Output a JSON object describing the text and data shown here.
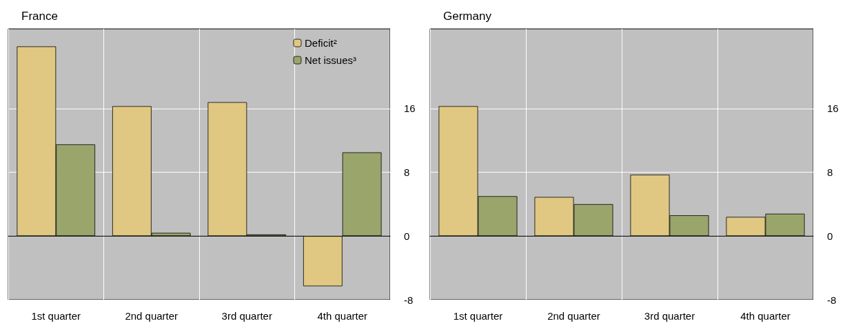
{
  "chart_data": [
    {
      "type": "bar",
      "title": "France",
      "categories": [
        "1st quarter",
        "2nd quarter",
        "3rd quarter",
        "4th quarter"
      ],
      "series": [
        {
          "name": "Deficit²",
          "color": "#e0c882",
          "values": [
            23.8,
            16.3,
            16.8,
            -6.3
          ]
        },
        {
          "name": "Net issues³",
          "color": "#9aa56c",
          "values": [
            11.5,
            0.4,
            0.2,
            10.5
          ]
        }
      ],
      "ylim": [
        -8,
        26
      ],
      "yticks": [
        -8,
        0,
        8,
        16
      ],
      "grid": true,
      "legend": "top right"
    },
    {
      "type": "bar",
      "title": "Germany",
      "categories": [
        "1st quarter",
        "2nd quarter",
        "3rd quarter",
        "4th quarter"
      ],
      "series": [
        {
          "color": "#e0c882",
          "values": [
            16.3,
            4.9,
            7.7,
            2.4
          ]
        },
        {
          "color": "#9aa56c",
          "values": [
            5.0,
            4.0,
            2.6,
            2.8
          ]
        }
      ],
      "ylim": [
        -8,
        26
      ],
      "yticks": [
        -8,
        0,
        8,
        16
      ],
      "grid": true
    }
  ]
}
